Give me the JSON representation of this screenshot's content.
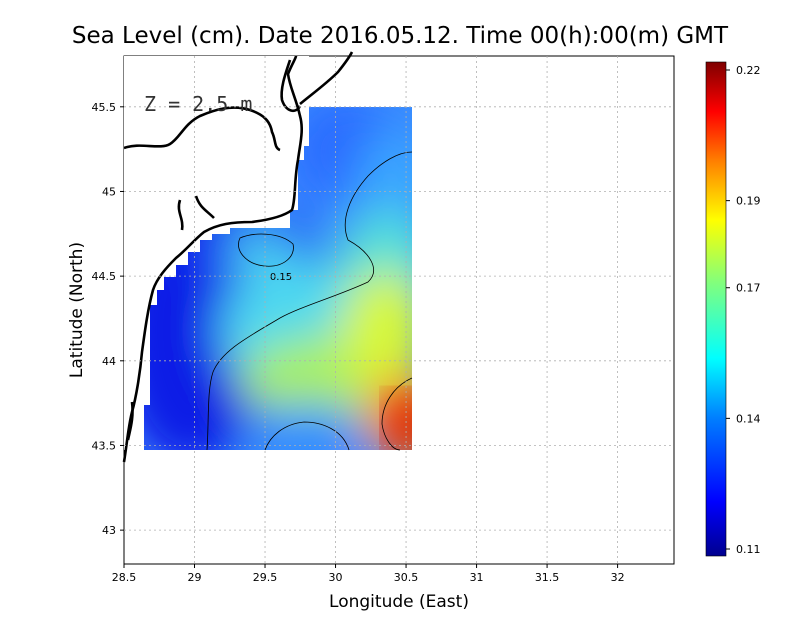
{
  "chart_data": {
    "type": "heatmap",
    "title": "Sea Level (cm). Date 2016.05.12. Time 00(h):00(m) GMT",
    "xlabel": "Longitude (East)",
    "ylabel": "Latitude (North)",
    "xlim": [
      28.5,
      32.4
    ],
    "ylim": [
      42.8,
      45.8
    ],
    "x_ticks": [
      28.5,
      29,
      29.5,
      30,
      30.5,
      31,
      31.5,
      32
    ],
    "x_tick_labels": [
      "28.5",
      "29",
      "29.5",
      "30",
      "30.5",
      "31",
      "31.5",
      "32"
    ],
    "y_ticks": [
      43,
      43.5,
      44,
      44.5,
      45,
      45.5
    ],
    "y_tick_labels": [
      "43",
      "43.5",
      "44",
      "44.5",
      "45",
      "45.5"
    ],
    "grid": true,
    "annotation": "Z = 2.5 m",
    "contour_label": "0.15",
    "colorbar": {
      "min": 0.11,
      "max": 0.22,
      "tick_values": [
        0.11,
        0.14,
        0.17,
        0.19,
        0.22
      ],
      "tick_labels": [
        "0.11",
        "0.14",
        "0.17",
        "0.19",
        "0.22"
      ],
      "colors": [
        "#00008f",
        "#0000ff",
        "#007fff",
        "#00ffff",
        "#7fff7f",
        "#ffff00",
        "#ff7f00",
        "#ff0000",
        "#7f0000"
      ]
    },
    "field_samples": [
      {
        "lon": 28.8,
        "lat": 44.0,
        "value": 0.125
      },
      {
        "lon": 29.2,
        "lat": 44.35,
        "value": 0.12
      },
      {
        "lon": 29.1,
        "lat": 43.7,
        "value": 0.13
      },
      {
        "lon": 29.6,
        "lat": 44.65,
        "value": 0.155
      },
      {
        "lon": 29.9,
        "lat": 45.3,
        "value": 0.13
      },
      {
        "lon": 30.3,
        "lat": 45.0,
        "value": 0.155
      },
      {
        "lon": 30.4,
        "lat": 44.6,
        "value": 0.16
      },
      {
        "lon": 30.2,
        "lat": 44.0,
        "value": 0.175
      },
      {
        "lon": 29.8,
        "lat": 43.6,
        "value": 0.16
      },
      {
        "lon": 30.45,
        "lat": 43.6,
        "value": 0.22
      }
    ]
  }
}
